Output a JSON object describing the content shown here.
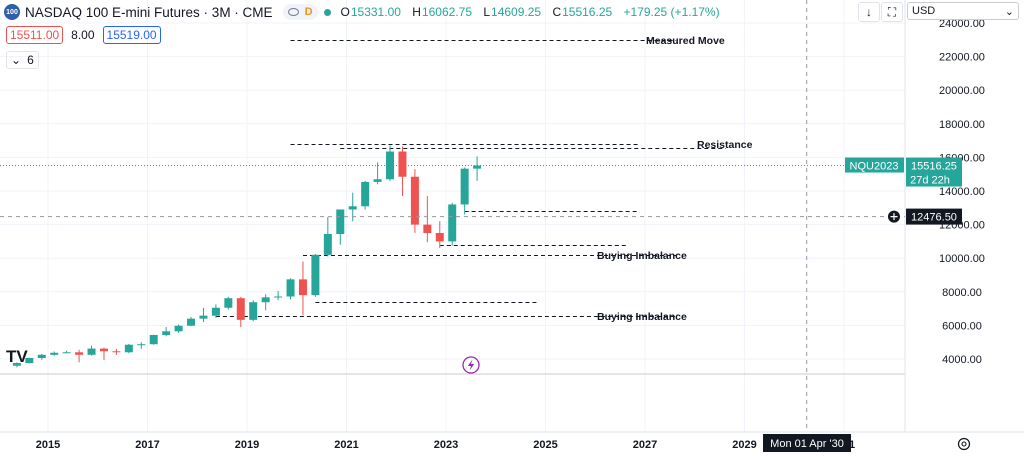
{
  "header": {
    "symbol_badge": "100",
    "title": "NASDAQ 100 E-mini Futures · 3M · CME",
    "d_badge": "D",
    "ohlc": {
      "o_label": "O",
      "o_value": "15331.00",
      "h_label": "H",
      "h_value": "16062.75",
      "l_label": "L",
      "l_value": "14609.25",
      "c_label": "C",
      "c_value": "15516.25",
      "change": "+179.25 (+1.17%)"
    }
  },
  "trade": {
    "sell_price": "15511.00",
    "spread": "8.00",
    "buy_price": "15519.00"
  },
  "indicators": {
    "collapse_label": "6",
    "chevron": "⌄"
  },
  "toolbar": {
    "download_icon": "↓",
    "fullscreen_icon": "⛶",
    "currency": "USD",
    "currency_chevron": "⌄"
  },
  "price_axis": {
    "labels": [
      "24000.00",
      "22000.00",
      "20000.00",
      "18000.00",
      "16000.00",
      "14000.00",
      "12000.00",
      "10000.00",
      "8000.00",
      "6000.00",
      "4000.00"
    ],
    "last_price_symbol": "NQU2023",
    "last_price": "15516.25",
    "countdown": "27d 22h",
    "crosshair_price": "12476.50"
  },
  "time_axis": {
    "labels": [
      "2015",
      "2017",
      "2019",
      "2021",
      "2023",
      "2025",
      "2027",
      "2029",
      "1"
    ],
    "crosshair_date": "Mon 01 Apr '30"
  },
  "annotations": {
    "measured_move": "Measured Move",
    "resistance": "Resistance",
    "buying_imbalance_1": "Buying Imbalance",
    "buying_imbalance_2": "Buying Imbalance"
  },
  "watermark": "TV",
  "colors": {
    "up": "#26a69a",
    "down": "#ef5350",
    "last_price_bg": "#26a69a",
    "crosshair_bg": "#131722",
    "lightning": "#9c27b0"
  },
  "chart_data": {
    "type": "candlestick",
    "title": "NASDAQ 100 E-mini Futures · 3M · CME",
    "x_unit": "quarter",
    "y_unit": "USD",
    "ylim": [
      3000,
      25500
    ],
    "xlim": [
      "2014-01",
      "2031-04"
    ],
    "candles": [
      {
        "t": "2014-Q2",
        "o": 3600,
        "h": 3800,
        "l": 3500,
        "c": 3760
      },
      {
        "t": "2014-Q3",
        "o": 3760,
        "h": 4080,
        "l": 3740,
        "c": 4060
      },
      {
        "t": "2014-Q4",
        "o": 4060,
        "h": 4300,
        "l": 3950,
        "c": 4250
      },
      {
        "t": "2015-Q1",
        "o": 4250,
        "h": 4450,
        "l": 4200,
        "c": 4370
      },
      {
        "t": "2015-Q2",
        "o": 4370,
        "h": 4500,
        "l": 4350,
        "c": 4400
      },
      {
        "t": "2015-Q3",
        "o": 4400,
        "h": 4550,
        "l": 3800,
        "c": 4250
      },
      {
        "t": "2015-Q4",
        "o": 4250,
        "h": 4800,
        "l": 4200,
        "c": 4620
      },
      {
        "t": "2016-Q1",
        "o": 4620,
        "h": 4680,
        "l": 3950,
        "c": 4460
      },
      {
        "t": "2016-Q2",
        "o": 4460,
        "h": 4600,
        "l": 4250,
        "c": 4400
      },
      {
        "t": "2016-Q3",
        "o": 4400,
        "h": 4900,
        "l": 4350,
        "c": 4850
      },
      {
        "t": "2016-Q4",
        "o": 4850,
        "h": 5000,
        "l": 4600,
        "c": 4880
      },
      {
        "t": "2017-Q1",
        "o": 4880,
        "h": 5450,
        "l": 4850,
        "c": 5430
      },
      {
        "t": "2017-Q2",
        "o": 5430,
        "h": 5900,
        "l": 5350,
        "c": 5650
      },
      {
        "t": "2017-Q3",
        "o": 5650,
        "h": 6050,
        "l": 5550,
        "c": 5980
      },
      {
        "t": "2017-Q4",
        "o": 5980,
        "h": 6500,
        "l": 5950,
        "c": 6400
      },
      {
        "t": "2018-Q1",
        "o": 6400,
        "h": 7050,
        "l": 6200,
        "c": 6580
      },
      {
        "t": "2018-Q2",
        "o": 6580,
        "h": 7250,
        "l": 6450,
        "c": 7050
      },
      {
        "t": "2018-Q3",
        "o": 7050,
        "h": 7700,
        "l": 6950,
        "c": 7620
      },
      {
        "t": "2018-Q4",
        "o": 7620,
        "h": 7700,
        "l": 5900,
        "c": 6330
      },
      {
        "t": "2019-Q1",
        "o": 6330,
        "h": 7500,
        "l": 6250,
        "c": 7380
      },
      {
        "t": "2019-Q2",
        "o": 7380,
        "h": 7850,
        "l": 6900,
        "c": 7670
      },
      {
        "t": "2019-Q3",
        "o": 7670,
        "h": 8050,
        "l": 7500,
        "c": 7720
      },
      {
        "t": "2019-Q4",
        "o": 7720,
        "h": 8800,
        "l": 7550,
        "c": 8740
      },
      {
        "t": "2020-Q1",
        "o": 8740,
        "h": 9800,
        "l": 6600,
        "c": 7800
      },
      {
        "t": "2020-Q2",
        "o": 7800,
        "h": 10250,
        "l": 7700,
        "c": 10200
      },
      {
        "t": "2020-Q3",
        "o": 10200,
        "h": 12450,
        "l": 10100,
        "c": 11440
      },
      {
        "t": "2020-Q4",
        "o": 11440,
        "h": 12900,
        "l": 10800,
        "c": 12900
      },
      {
        "t": "2021-Q1",
        "o": 12900,
        "h": 13900,
        "l": 12200,
        "c": 13090
      },
      {
        "t": "2021-Q2",
        "o": 13090,
        "h": 14600,
        "l": 12900,
        "c": 14540
      },
      {
        "t": "2021-Q3",
        "o": 14540,
        "h": 15700,
        "l": 14400,
        "c": 14700
      },
      {
        "t": "2021-Q4",
        "o": 14700,
        "h": 16700,
        "l": 14600,
        "c": 16350
      },
      {
        "t": "2022-Q1",
        "o": 16350,
        "h": 16650,
        "l": 13700,
        "c": 14850
      },
      {
        "t": "2022-Q2",
        "o": 14850,
        "h": 15300,
        "l": 11500,
        "c": 12000
      },
      {
        "t": "2022-Q3",
        "o": 12000,
        "h": 13700,
        "l": 10950,
        "c": 11500
      },
      {
        "t": "2022-Q4",
        "o": 11500,
        "h": 12200,
        "l": 10600,
        "c": 11000
      },
      {
        "t": "2023-Q1",
        "o": 11000,
        "h": 13300,
        "l": 10750,
        "c": 13200
      },
      {
        "t": "2023-Q2",
        "o": 13200,
        "h": 15400,
        "l": 12600,
        "c": 15330
      },
      {
        "t": "2023-Q3",
        "o": 15331,
        "h": 16062.75,
        "l": 14609.25,
        "c": 15516.25
      }
    ],
    "levels": [
      {
        "label": "Measured Move",
        "y": 23000,
        "from": "2019-Q4",
        "to": "2027-Q3"
      },
      {
        "label": "Resistance",
        "y": 16800,
        "from": "2019-Q4",
        "to": "2026-Q4"
      },
      {
        "label": "",
        "y": 16550,
        "from": "2020-Q4",
        "to": "2028-Q3"
      },
      {
        "label": "",
        "y": 12800,
        "from": "2023-Q2",
        "to": "2026-Q4"
      },
      {
        "label": "",
        "y": 10800,
        "from": "2022-Q4",
        "to": "2026-Q3"
      },
      {
        "label": "Buying Imbalance",
        "y": 10200,
        "from": "2020-Q1",
        "to": "2027-Q3"
      },
      {
        "label": "",
        "y": 7400,
        "from": "2020-Q2",
        "to": "2024-Q4"
      },
      {
        "label": "Buying Imbalance",
        "y": 6550,
        "from": "2018-Q2",
        "to": "2027-Q3"
      }
    ],
    "last_price": 15516.25,
    "crosshair": {
      "price": 12476.5,
      "date": "Mon 01 Apr '30"
    }
  }
}
